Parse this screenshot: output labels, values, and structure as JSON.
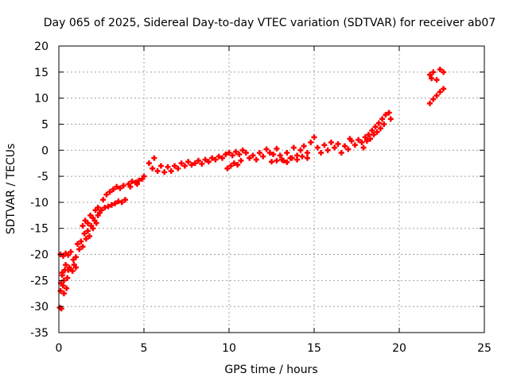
{
  "chart_data": {
    "type": "scatter",
    "title": "Day 065 of 2025, Sidereal Day-to-day VTEC variation (SDTVAR) for receiver ab07",
    "xlabel": "GPS time / hours",
    "ylabel": "SDTVAR / TECUs",
    "xlim": [
      0,
      25
    ],
    "ylim": [
      -35,
      20
    ],
    "xticks": [
      0,
      5,
      10,
      15,
      20,
      25
    ],
    "yticks": [
      -35,
      -30,
      -25,
      -20,
      -15,
      -10,
      -5,
      0,
      5,
      10,
      15,
      20
    ],
    "grid": true,
    "marker": "+",
    "color": "#ff0000",
    "series": [
      {
        "values": [
          [
            0.05,
            -30.2
          ],
          [
            0.15,
            -30.4
          ],
          [
            0.1,
            -27.0
          ],
          [
            0.12,
            -25.5
          ],
          [
            0.2,
            -24.0
          ],
          [
            0.25,
            -26.0
          ],
          [
            0.3,
            -27.5
          ],
          [
            0.35,
            -23.0
          ],
          [
            0.4,
            -22.0
          ],
          [
            0.2,
            -23.5
          ],
          [
            0.3,
            -25.0
          ],
          [
            0.45,
            -26.5
          ],
          [
            0.5,
            -24.5
          ],
          [
            0.55,
            -23.0
          ],
          [
            0.6,
            -22.5
          ],
          [
            0.7,
            -22.8
          ],
          [
            0.8,
            -23.2
          ],
          [
            0.9,
            -22.0
          ],
          [
            1.0,
            -22.5
          ],
          [
            0.1,
            -20.0
          ],
          [
            0.25,
            -20.3
          ],
          [
            0.4,
            -19.8
          ],
          [
            0.55,
            -20.1
          ],
          [
            0.7,
            -19.5
          ],
          [
            0.85,
            -21.0
          ],
          [
            1.0,
            -20.5
          ],
          [
            1.1,
            -18.0
          ],
          [
            1.2,
            -19.0
          ],
          [
            1.3,
            -17.5
          ],
          [
            1.4,
            -18.5
          ],
          [
            1.5,
            -16.0
          ],
          [
            1.6,
            -17.0
          ],
          [
            1.7,
            -15.5
          ],
          [
            1.8,
            -16.5
          ],
          [
            1.9,
            -14.5
          ],
          [
            2.0,
            -15.0
          ],
          [
            2.1,
            -13.5
          ],
          [
            2.2,
            -14.0
          ],
          [
            2.3,
            -12.5
          ],
          [
            2.4,
            -12.0
          ],
          [
            1.4,
            -14.5
          ],
          [
            1.55,
            -13.5
          ],
          [
            1.7,
            -14.0
          ],
          [
            1.85,
            -12.5
          ],
          [
            2.0,
            -13.0
          ],
          [
            2.15,
            -11.5
          ],
          [
            2.3,
            -11.0
          ],
          [
            2.6,
            -9.5
          ],
          [
            2.8,
            -8.5
          ],
          [
            3.0,
            -8.0
          ],
          [
            3.2,
            -7.5
          ],
          [
            3.4,
            -7.0
          ],
          [
            3.6,
            -7.3
          ],
          [
            3.8,
            -6.8
          ],
          [
            2.5,
            -11.5
          ],
          [
            2.7,
            -11.0
          ],
          [
            2.9,
            -10.8
          ],
          [
            3.1,
            -10.5
          ],
          [
            3.3,
            -10.2
          ],
          [
            3.5,
            -9.8
          ],
          [
            3.7,
            -10.0
          ],
          [
            3.9,
            -9.5
          ],
          [
            4.1,
            -6.5
          ],
          [
            4.3,
            -6.0
          ],
          [
            4.5,
            -6.2
          ],
          [
            4.7,
            -5.8
          ],
          [
            4.9,
            -5.5
          ],
          [
            5.0,
            -5.0
          ],
          [
            4.2,
            -7.0
          ],
          [
            4.6,
            -6.5
          ],
          [
            5.3,
            -2.5
          ],
          [
            5.5,
            -3.5
          ],
          [
            5.6,
            -1.5
          ],
          [
            5.8,
            -4.0
          ],
          [
            6.0,
            -3.0
          ],
          [
            6.2,
            -4.2
          ],
          [
            6.4,
            -3.2
          ],
          [
            6.6,
            -4.0
          ],
          [
            6.8,
            -3.0
          ],
          [
            7.0,
            -3.5
          ],
          [
            7.2,
            -2.5
          ],
          [
            7.4,
            -3.0
          ],
          [
            7.6,
            -2.2
          ],
          [
            7.8,
            -2.8
          ],
          [
            8.0,
            -2.5
          ],
          [
            8.2,
            -2.0
          ],
          [
            8.4,
            -2.6
          ],
          [
            8.6,
            -1.8
          ],
          [
            8.8,
            -2.2
          ],
          [
            9.0,
            -1.5
          ],
          [
            9.2,
            -1.8
          ],
          [
            9.4,
            -1.2
          ],
          [
            9.6,
            -1.5
          ],
          [
            9.8,
            -0.8
          ],
          [
            10.0,
            -0.5
          ],
          [
            10.2,
            -1.0
          ],
          [
            10.4,
            -0.3
          ],
          [
            10.6,
            -0.8
          ],
          [
            10.8,
            0.0
          ],
          [
            11.0,
            -0.5
          ],
          [
            9.9,
            -3.5
          ],
          [
            10.1,
            -3.0
          ],
          [
            10.3,
            -2.5
          ],
          [
            10.5,
            -2.8
          ],
          [
            10.7,
            -2.0
          ],
          [
            11.2,
            -1.5
          ],
          [
            11.4,
            -1.0
          ],
          [
            11.6,
            -1.8
          ],
          [
            11.8,
            -0.5
          ],
          [
            12.0,
            -1.2
          ],
          [
            12.2,
            0.2
          ],
          [
            12.4,
            -0.5
          ],
          [
            12.6,
            -0.8
          ],
          [
            12.8,
            0.3
          ],
          [
            13.0,
            -1.0
          ],
          [
            13.2,
            -2.0
          ],
          [
            13.4,
            -0.5
          ],
          [
            13.6,
            -1.5
          ],
          [
            13.8,
            0.5
          ],
          [
            14.0,
            -1.0
          ],
          [
            14.2,
            0.0
          ],
          [
            14.4,
            0.8
          ],
          [
            14.6,
            -0.5
          ],
          [
            14.8,
            1.5
          ],
          [
            15.0,
            2.5
          ],
          [
            12.5,
            -2.2
          ],
          [
            12.8,
            -2.0
          ],
          [
            13.1,
            -1.8
          ],
          [
            13.4,
            -2.3
          ],
          [
            13.7,
            -1.5
          ],
          [
            14.0,
            -1.8
          ],
          [
            14.3,
            -1.2
          ],
          [
            14.6,
            -1.5
          ],
          [
            15.2,
            0.5
          ],
          [
            15.4,
            -0.5
          ],
          [
            15.6,
            1.0
          ],
          [
            15.8,
            0.0
          ],
          [
            16.0,
            1.5
          ],
          [
            16.2,
            0.5
          ],
          [
            16.4,
            1.2
          ],
          [
            16.6,
            -0.5
          ],
          [
            16.8,
            0.8
          ],
          [
            17.0,
            0.2
          ],
          [
            17.2,
            1.8
          ],
          [
            17.4,
            1.0
          ],
          [
            17.6,
            2.0
          ],
          [
            17.8,
            1.5
          ],
          [
            18.0,
            2.5
          ],
          [
            18.2,
            3.0
          ],
          [
            18.4,
            3.8
          ],
          [
            18.6,
            4.5
          ],
          [
            18.8,
            5.2
          ],
          [
            19.0,
            6.0
          ],
          [
            19.2,
            6.8
          ],
          [
            19.4,
            7.2
          ],
          [
            19.5,
            6.0
          ],
          [
            17.1,
            2.2
          ],
          [
            17.9,
            0.5
          ],
          [
            18.1,
            1.8
          ],
          [
            18.3,
            2.2
          ],
          [
            18.5,
            3.0
          ],
          [
            18.7,
            3.5
          ],
          [
            18.9,
            4.2
          ],
          [
            19.1,
            5.0
          ],
          [
            21.8,
            14.5
          ],
          [
            22.0,
            15.0
          ],
          [
            22.2,
            13.5
          ],
          [
            22.4,
            15.5
          ],
          [
            22.6,
            15.0
          ],
          [
            21.9,
            13.8
          ],
          [
            21.8,
            9.0
          ],
          [
            22.0,
            9.8
          ],
          [
            22.2,
            10.5
          ],
          [
            22.4,
            11.2
          ],
          [
            22.6,
            11.8
          ]
        ]
      }
    ]
  }
}
